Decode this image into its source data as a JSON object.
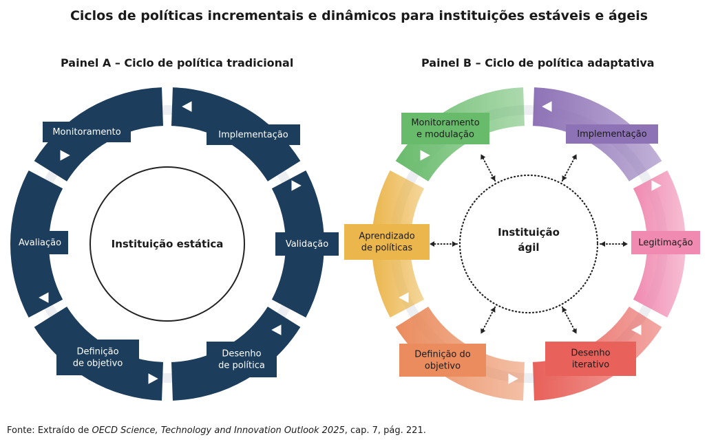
{
  "title": "Ciclos de políticas incrementais e dinâmicos para instituições estáveis e ágeis",
  "panel_a": {
    "title": "Painel A – Ciclo de política tradicional",
    "center": "Instituição estática",
    "stages": [
      {
        "key": "implementacao",
        "label": "Implementação"
      },
      {
        "key": "validacao",
        "label": "Validação"
      },
      {
        "key": "desenho",
        "label": "Desenho|de política"
      },
      {
        "key": "definicao",
        "label": "Definição|de objetivo"
      },
      {
        "key": "avaliacao",
        "label": "Avaliação"
      },
      {
        "key": "monitoramento",
        "label": "Monitoramento"
      }
    ]
  },
  "panel_b": {
    "title": "Painel B – Ciclo de política adaptativa",
    "center": "Instituição|ágil",
    "stages": [
      {
        "key": "implementacao",
        "label": "Implementação",
        "color": "#8e72b6"
      },
      {
        "key": "legitimacao",
        "label": "Legitimação",
        "color": "#f08ab0"
      },
      {
        "key": "desenho",
        "label": "Desenho|iterativo",
        "color": "#e8615a"
      },
      {
        "key": "definicao",
        "label": "Definição do|objetivo",
        "color": "#ea8c5e"
      },
      {
        "key": "aprendizado",
        "label": "Aprendizado|de políticas",
        "color": "#ebb64c"
      },
      {
        "key": "monitoramento",
        "label": "Monitoramento|e modulação",
        "color": "#69bb6c"
      }
    ]
  },
  "colors": {
    "panel_a": "#1c3e5c",
    "ring_shadow": "#eceef1"
  },
  "source": {
    "prefix": "Fonte: Extraído de ",
    "publication": "OECD Science, Technology and Innovation Outlook 2025",
    "suffix": ", cap. 7, pág. 221."
  }
}
